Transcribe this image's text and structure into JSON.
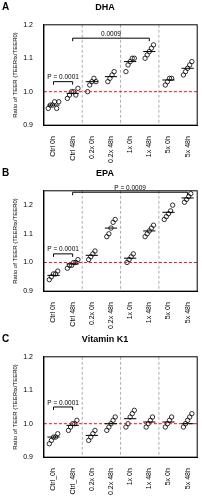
{
  "chart_data": [
    {
      "panel": "A",
      "title": "DHA",
      "type": "scatter",
      "y_label": "Ratio of TEER (TEERtx/TEER0)",
      "categories": [
        "Ctrl 0h",
        "Ctrl 48h",
        "0.2x 0h",
        "0.2x 48h",
        "1x 0h",
        "1x 48h",
        "5x 0h",
        "5x 48h"
      ],
      "values": [
        [
          0.95,
          0.96,
          0.96,
          0.97,
          0.95,
          0.97
        ],
        [
          0.98,
          0.99,
          1.0,
          1.0,
          0.99,
          1.01
        ],
        [
          1.0,
          1.02,
          1.03,
          1.04,
          1.03
        ],
        [
          1.03,
          1.04,
          1.05,
          1.06
        ],
        [
          1.06,
          1.08,
          1.09,
          1.1,
          1.1
        ],
        [
          1.1,
          1.11,
          1.12,
          1.13,
          1.14
        ],
        [
          1.02,
          1.03,
          1.04,
          1.04
        ],
        [
          1.05,
          1.06,
          1.07,
          1.08,
          1.09
        ]
      ],
      "means": [
        0.96,
        0.995,
        1.03,
        1.045,
        1.09,
        1.12,
        1.035,
        1.07
      ],
      "color": "#000000",
      "marker": "open circle",
      "grid": false,
      "ylim": [
        0.9,
        1.2
      ],
      "yticks": [
        0.9,
        {
          "value": 1,
          "label": "1.0"
        },
        1.1,
        1.2
      ],
      "hline": {
        "value": 1,
        "color": "#e41a1c",
        "line_style": "dashed"
      },
      "annotations": [
        {
          "text": "P = 0.0001",
          "from": "Ctrl 0h",
          "to": "Ctrl 48h",
          "y": 1.03
        },
        {
          "text": "0.0009",
          "from": "Ctrl 48h",
          "to": "1x 48h",
          "y": 1.16
        }
      ]
    },
    {
      "panel": "B",
      "title": "EPA",
      "type": "scatter",
      "y_label": "Ratio of TEER (TEERtx/TEER0)",
      "categories": [
        "Ctrl 0h",
        "Ctrl 48h",
        "0.2x 0h",
        "0.2x 48h",
        "1x 0h",
        "1x 48h",
        "5x 0h",
        "5x 48h"
      ],
      "values": [
        [
          0.94,
          0.95,
          0.96,
          0.96,
          0.97
        ],
        [
          0.98,
          0.99,
          0.99,
          1.0,
          1.0,
          1.01
        ],
        [
          1.01,
          1.02,
          1.03,
          1.04
        ],
        [
          1.09,
          1.1,
          1.12,
          1.14,
          1.15
        ],
        [
          1.0,
          1.01,
          1.02,
          1.03
        ],
        [
          1.09,
          1.1,
          1.11,
          1.12,
          1.13
        ],
        [
          1.15,
          1.16,
          1.17,
          1.18,
          1.2
        ],
        [
          1.21,
          1.22,
          1.23,
          1.24
        ]
      ],
      "means": [
        0.955,
        0.995,
        1.025,
        1.12,
        1.015,
        1.11,
        1.175,
        1.225
      ],
      "color": "#000000",
      "marker": "open circle",
      "grid": false,
      "ylim": [
        0.9,
        1.25
      ],
      "yticks": [
        0.9,
        {
          "value": 1,
          "label": "1.0"
        },
        1.1,
        1.2
      ],
      "hline": {
        "value": 1,
        "color": "#e41a1c",
        "line_style": "dashed"
      },
      "annotations": [
        {
          "text": "P = 0.0001",
          "from": "Ctrl 0h",
          "to": "Ctrl 48h",
          "y": 1.03
        },
        {
          "text": "P = 0.0009",
          "from": "Ctrl 48h",
          "to": "5x 48h",
          "y": 1.245
        }
      ]
    },
    {
      "panel": "C",
      "title": "Vitamin K1",
      "type": "scatter",
      "y_label": "Ratio of TEER (TEERtx/TEER0)",
      "categories": [
        "Ctrl_0h",
        "Ctrl_48h",
        "0.2x 0h",
        "0.2x 48h",
        "1x 0h",
        "1x 48h",
        "5x 0h",
        "5x 48h"
      ],
      "values": [
        [
          0.94,
          0.95,
          0.96,
          0.96,
          0.97
        ],
        [
          0.98,
          0.99,
          1.0,
          1.0,
          1.01
        ],
        [
          0.95,
          0.96,
          0.97,
          0.98
        ],
        [
          0.98,
          0.99,
          1.0,
          1.01,
          1.02
        ],
        [
          0.99,
          1.0,
          1.02,
          1.03,
          1.04
        ],
        [
          0.99,
          1.0,
          1.01,
          1.02
        ],
        [
          0.99,
          1.0,
          1.01,
          1.02
        ],
        [
          0.99,
          1.0,
          1.01,
          1.02,
          1.03
        ]
      ],
      "means": [
        0.96,
        0.995,
        0.965,
        1.0,
        1.015,
        1.005,
        1.005,
        1.0
      ],
      "color": "#000000",
      "marker": "open circle",
      "grid": false,
      "ylim": [
        0.9,
        1.2
      ],
      "yticks": [
        0.9,
        {
          "value": 1,
          "label": "1.0"
        },
        1.1,
        1.2
      ],
      "hline": {
        "value": 1,
        "color": "#e41a1c",
        "line_style": "dashed"
      },
      "annotations": [
        {
          "text": "P = 0.0001",
          "from": "Ctrl_0h",
          "to": "Ctrl_48h",
          "y": 1.05
        }
      ]
    }
  ]
}
